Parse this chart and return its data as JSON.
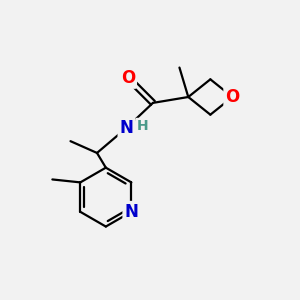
{
  "background_color": "#f2f2f2",
  "atom_colors": {
    "C": "#000000",
    "N": "#0000cc",
    "O": "#ff0000",
    "H": "#4a9a8a"
  },
  "bond_color": "#000000",
  "bond_width": 1.6,
  "font_size_atom": 12
}
